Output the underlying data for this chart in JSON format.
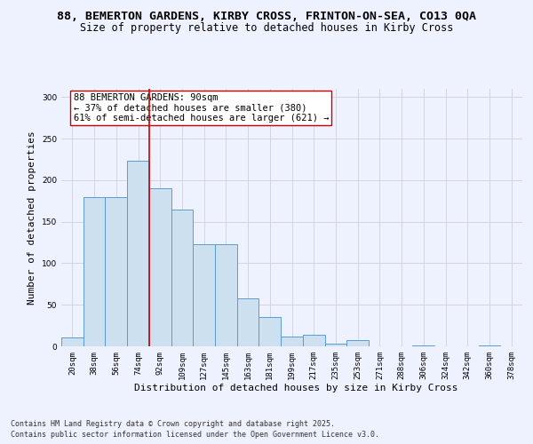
{
  "title_line1": "88, BEMERTON GARDENS, KIRBY CROSS, FRINTON-ON-SEA, CO13 0QA",
  "title_line2": "Size of property relative to detached houses in Kirby Cross",
  "xlabel": "Distribution of detached houses by size in Kirby Cross",
  "ylabel": "Number of detached properties",
  "categories": [
    "20sqm",
    "38sqm",
    "56sqm",
    "74sqm",
    "92sqm",
    "109sqm",
    "127sqm",
    "145sqm",
    "163sqm",
    "181sqm",
    "199sqm",
    "217sqm",
    "235sqm",
    "253sqm",
    "271sqm",
    "288sqm",
    "306sqm",
    "324sqm",
    "342sqm",
    "360sqm",
    "378sqm"
  ],
  "values": [
    11,
    180,
    180,
    223,
    190,
    165,
    123,
    123,
    58,
    35,
    12,
    14,
    3,
    7,
    0,
    0,
    1,
    0,
    0,
    1,
    0
  ],
  "bar_color": "#cce0f0",
  "bar_edge_color": "#5b9bd5",
  "vline_x": 4,
  "vline_color": "#cc0000",
  "annotation_text": "88 BEMERTON GARDENS: 90sqm\n← 37% of detached houses are smaller (380)\n61% of semi-detached houses are larger (621) →",
  "annotation_box_color": "white",
  "annotation_box_edge_color": "#cc0000",
  "ylim": [
    0,
    310
  ],
  "yticks": [
    0,
    50,
    100,
    150,
    200,
    250,
    300
  ],
  "grid_color": "#d0d0d8",
  "background_color": "#eef2ff",
  "footer_line1": "Contains HM Land Registry data © Crown copyright and database right 2025.",
  "footer_line2": "Contains public sector information licensed under the Open Government Licence v3.0.",
  "title_fontsize": 9.5,
  "subtitle_fontsize": 8.5,
  "axis_label_fontsize": 8,
  "tick_fontsize": 6.5,
  "annotation_fontsize": 7.5,
  "footer_fontsize": 6
}
